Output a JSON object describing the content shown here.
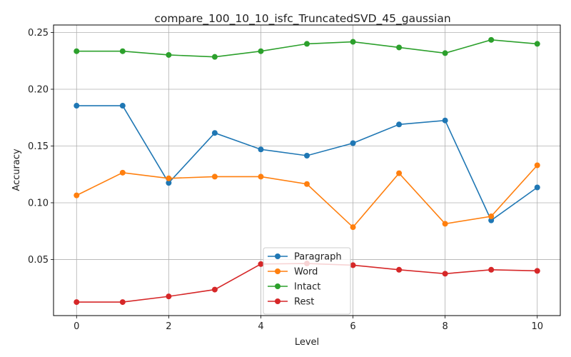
{
  "chart_data": {
    "type": "line",
    "title": "compare_100_10_10_isfc_TruncatedSVD_45_gaussian",
    "xlabel": "Level",
    "ylabel": "Accuracy",
    "x": [
      0,
      1,
      2,
      3,
      4,
      5,
      6,
      7,
      8,
      9,
      10
    ],
    "xlim": [
      -0.5,
      10.5
    ],
    "ylim": [
      0.0006,
      0.2566
    ],
    "xticks": [
      0,
      2,
      4,
      6,
      8,
      10
    ],
    "xtick_labels": [
      "0",
      "2",
      "4",
      "6",
      "8",
      "10"
    ],
    "yticks": [
      0.05,
      0.1,
      0.15,
      0.2,
      0.25
    ],
    "ytick_labels": [
      "0.05",
      "0.10",
      "0.15",
      "0.20",
      "0.25"
    ],
    "grid": true,
    "legend_position": "bottom-center",
    "series": [
      {
        "name": "Paragraph",
        "color": "#1f77b4",
        "values": [
          0.1855,
          0.1855,
          0.1175,
          0.1615,
          0.147,
          0.1415,
          0.1525,
          0.169,
          0.1725,
          0.0845,
          0.1135
        ]
      },
      {
        "name": "Word",
        "color": "#ff7f0e",
        "values": [
          0.1065,
          0.1265,
          0.1215,
          0.123,
          0.123,
          0.1165,
          0.0785,
          0.126,
          0.0815,
          0.088,
          0.133
        ]
      },
      {
        "name": "Intact",
        "color": "#2ca02c",
        "values": [
          0.2335,
          0.2335,
          0.2302,
          0.2285,
          0.2335,
          0.24,
          0.2418,
          0.2368,
          0.2318,
          0.2435,
          0.24
        ]
      },
      {
        "name": "Rest",
        "color": "#d62728",
        "values": [
          0.0125,
          0.0125,
          0.0175,
          0.0235,
          0.046,
          0.0465,
          0.045,
          0.041,
          0.0375,
          0.041,
          0.04
        ]
      }
    ]
  }
}
